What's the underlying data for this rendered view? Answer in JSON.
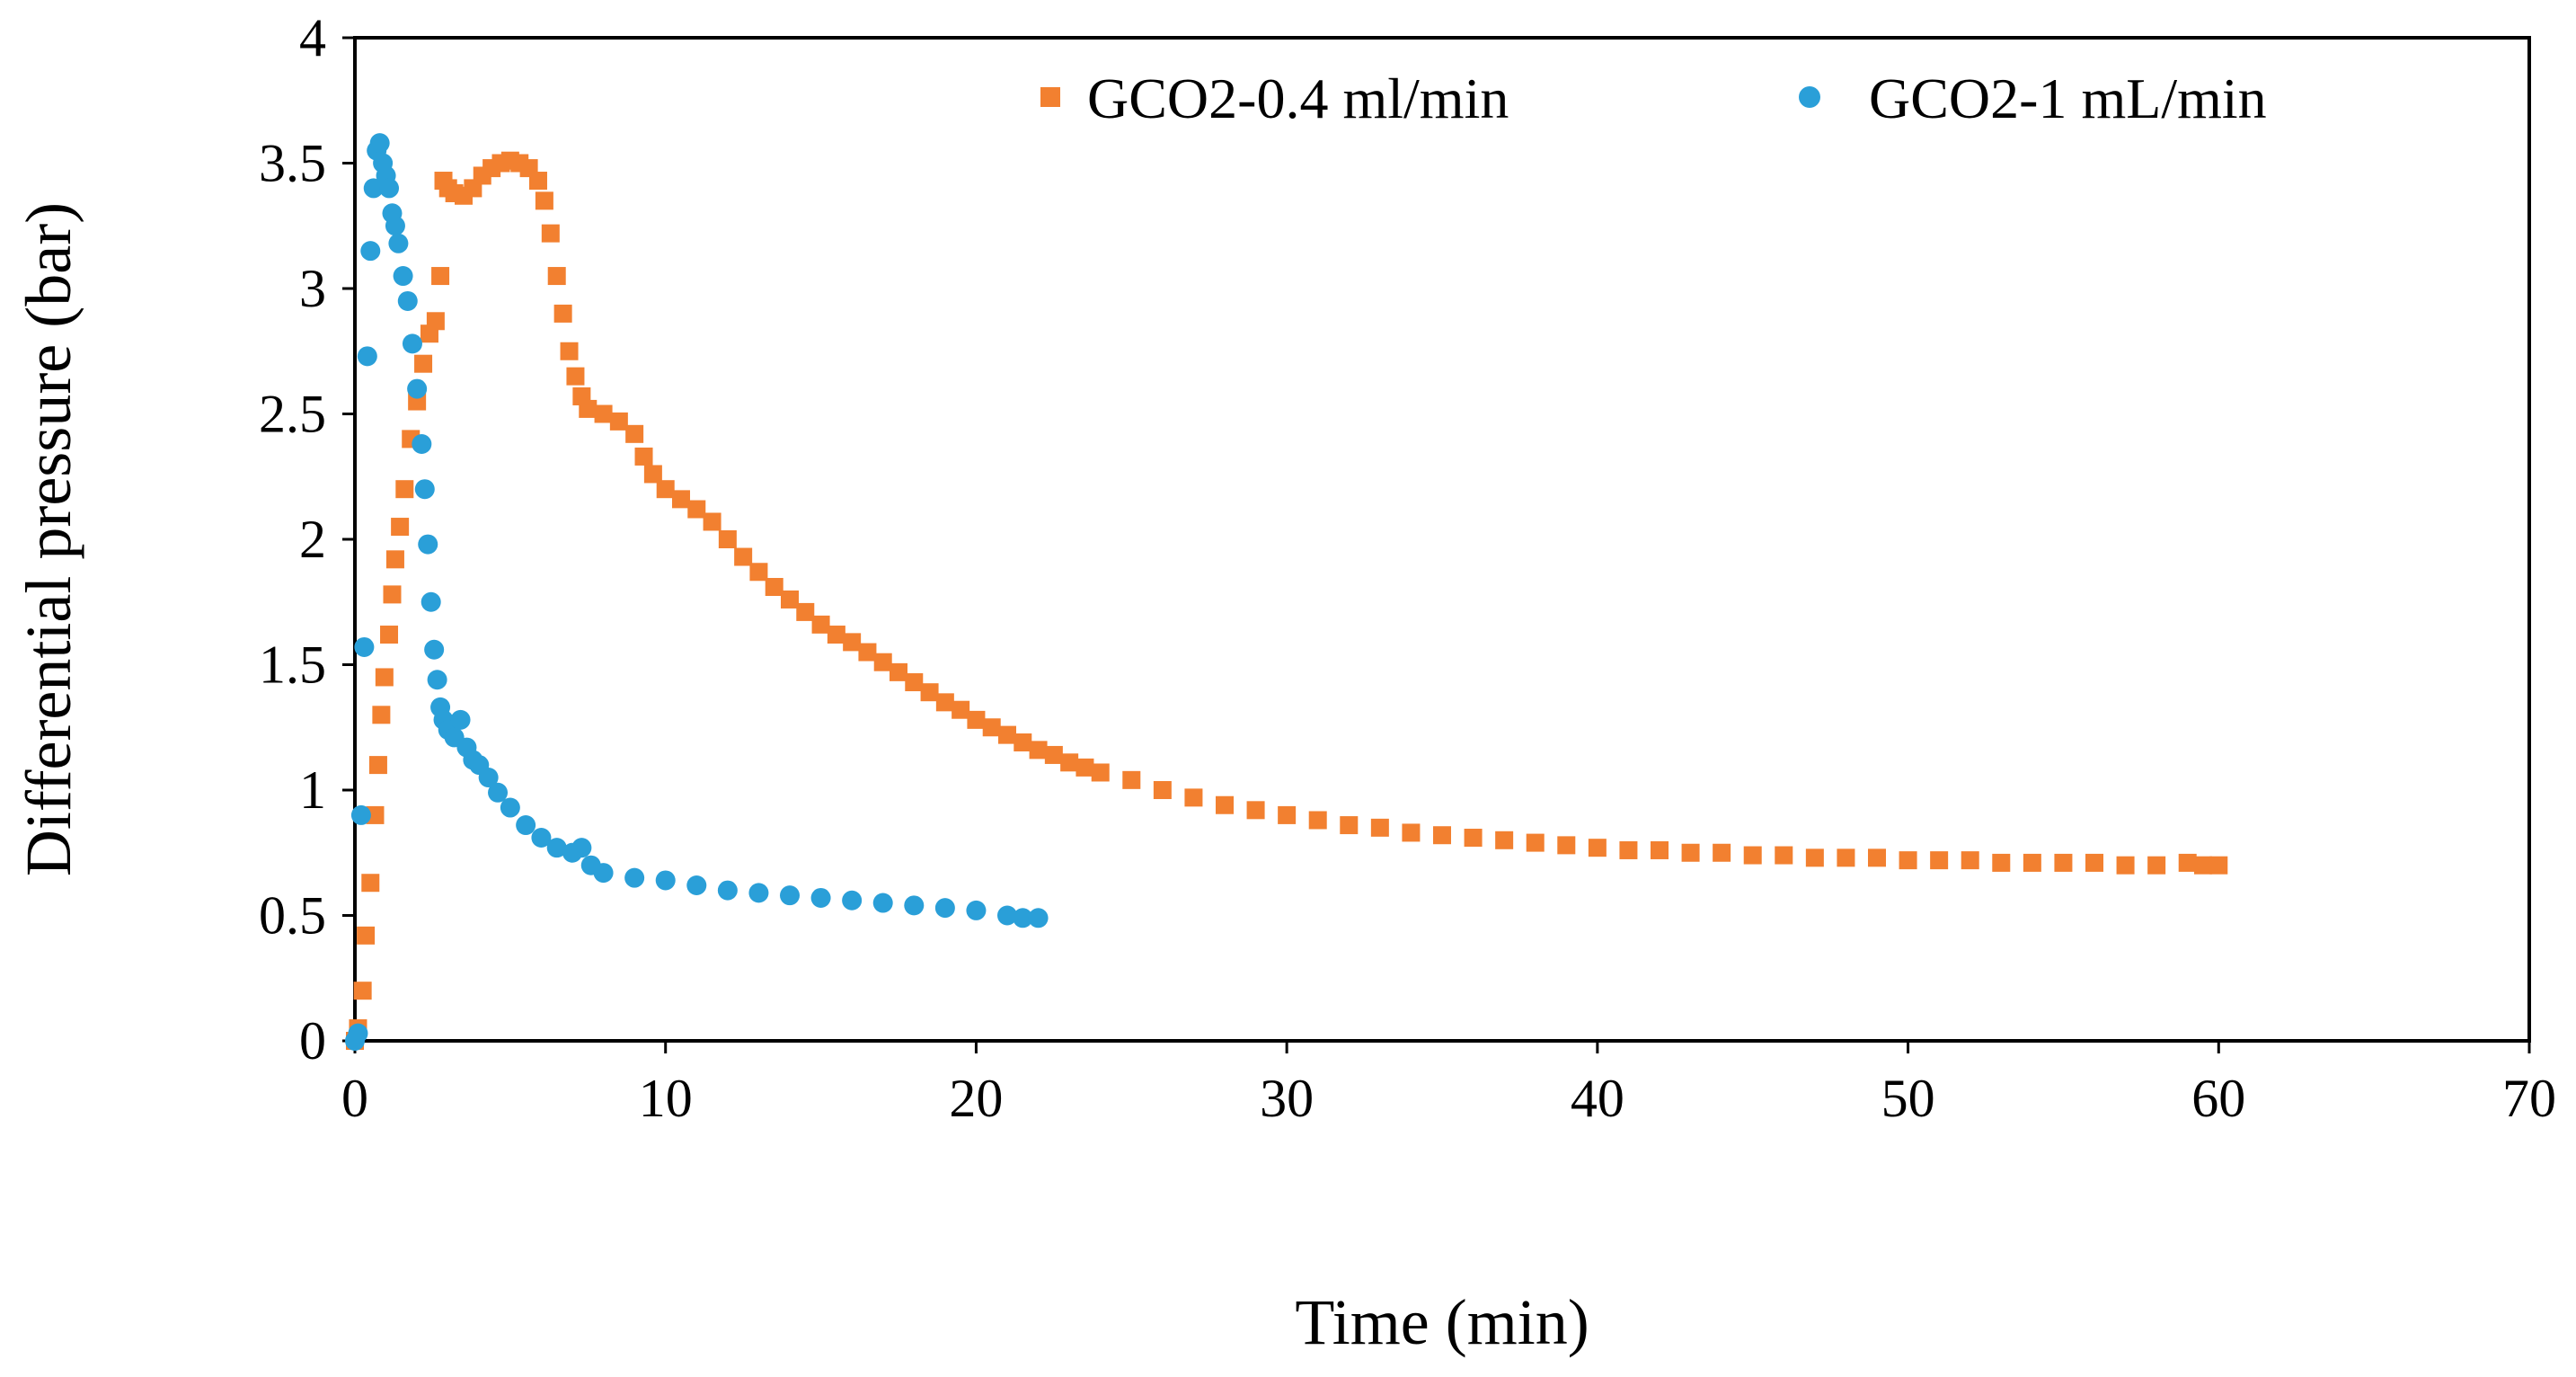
{
  "chart_data": {
    "type": "scatter",
    "title": "",
    "xlabel": "Time (min)",
    "ylabel": "Differential pressure (bar)",
    "xlim": [
      0,
      70
    ],
    "ylim": [
      0,
      4
    ],
    "xticks": [
      0,
      10,
      20,
      30,
      40,
      50,
      60,
      70
    ],
    "yticks": [
      0,
      0.5,
      1,
      1.5,
      2,
      2.5,
      3,
      3.5,
      4
    ],
    "ytick_labels": [
      "0",
      "0.5",
      "1",
      "1.5",
      "2",
      "2.5",
      "3",
      "3.5",
      "4"
    ],
    "grid": false,
    "legend_position": "top-right",
    "series": [
      {
        "name": "GCO2-0.4 ml/min",
        "marker": "square",
        "color": "#F28030",
        "points": [
          [
            0.0,
            0.0
          ],
          [
            0.1,
            0.05
          ],
          [
            0.25,
            0.2
          ],
          [
            0.35,
            0.42
          ],
          [
            0.5,
            0.63
          ],
          [
            0.65,
            0.9
          ],
          [
            0.75,
            1.1
          ],
          [
            0.85,
            1.3
          ],
          [
            0.95,
            1.45
          ],
          [
            1.1,
            1.62
          ],
          [
            1.2,
            1.78
          ],
          [
            1.3,
            1.92
          ],
          [
            1.45,
            2.05
          ],
          [
            1.6,
            2.2
          ],
          [
            1.8,
            2.4
          ],
          [
            2.0,
            2.55
          ],
          [
            2.2,
            2.7
          ],
          [
            2.4,
            2.82
          ],
          [
            2.6,
            2.87
          ],
          [
            2.75,
            3.05
          ],
          [
            2.85,
            3.43
          ],
          [
            3.0,
            3.4
          ],
          [
            3.2,
            3.38
          ],
          [
            3.5,
            3.37
          ],
          [
            3.8,
            3.4
          ],
          [
            4.1,
            3.45
          ],
          [
            4.4,
            3.48
          ],
          [
            4.7,
            3.5
          ],
          [
            5.0,
            3.51
          ],
          [
            5.3,
            3.5
          ],
          [
            5.6,
            3.48
          ],
          [
            5.9,
            3.43
          ],
          [
            6.1,
            3.35
          ],
          [
            6.3,
            3.22
          ],
          [
            6.5,
            3.05
          ],
          [
            6.7,
            2.9
          ],
          [
            6.9,
            2.75
          ],
          [
            7.1,
            2.65
          ],
          [
            7.3,
            2.57
          ],
          [
            7.5,
            2.52
          ],
          [
            8.0,
            2.5
          ],
          [
            8.5,
            2.47
          ],
          [
            9.0,
            2.42
          ],
          [
            9.3,
            2.33
          ],
          [
            9.6,
            2.26
          ],
          [
            10.0,
            2.2
          ],
          [
            10.5,
            2.16
          ],
          [
            11.0,
            2.12
          ],
          [
            11.5,
            2.07
          ],
          [
            12.0,
            2.0
          ],
          [
            12.5,
            1.93
          ],
          [
            13.0,
            1.87
          ],
          [
            13.5,
            1.81
          ],
          [
            14.0,
            1.76
          ],
          [
            14.5,
            1.71
          ],
          [
            15.0,
            1.66
          ],
          [
            15.5,
            1.62
          ],
          [
            16.0,
            1.59
          ],
          [
            16.5,
            1.55
          ],
          [
            17.0,
            1.51
          ],
          [
            17.5,
            1.47
          ],
          [
            18.0,
            1.43
          ],
          [
            18.5,
            1.39
          ],
          [
            19.0,
            1.35
          ],
          [
            19.5,
            1.32
          ],
          [
            20.0,
            1.28
          ],
          [
            20.5,
            1.25
          ],
          [
            21.0,
            1.22
          ],
          [
            21.5,
            1.19
          ],
          [
            22.0,
            1.16
          ],
          [
            22.5,
            1.14
          ],
          [
            23.0,
            1.11
          ],
          [
            23.5,
            1.09
          ],
          [
            24.0,
            1.07
          ],
          [
            25.0,
            1.04
          ],
          [
            26.0,
            1.0
          ],
          [
            27.0,
            0.97
          ],
          [
            28.0,
            0.94
          ],
          [
            29.0,
            0.92
          ],
          [
            30.0,
            0.9
          ],
          [
            31.0,
            0.88
          ],
          [
            32.0,
            0.86
          ],
          [
            33.0,
            0.85
          ],
          [
            34.0,
            0.83
          ],
          [
            35.0,
            0.82
          ],
          [
            36.0,
            0.81
          ],
          [
            37.0,
            0.8
          ],
          [
            38.0,
            0.79
          ],
          [
            39.0,
            0.78
          ],
          [
            40.0,
            0.77
          ],
          [
            41.0,
            0.76
          ],
          [
            42.0,
            0.76
          ],
          [
            43.0,
            0.75
          ],
          [
            44.0,
            0.75
          ],
          [
            45.0,
            0.74
          ],
          [
            46.0,
            0.74
          ],
          [
            47.0,
            0.73
          ],
          [
            48.0,
            0.73
          ],
          [
            49.0,
            0.73
          ],
          [
            50.0,
            0.72
          ],
          [
            51.0,
            0.72
          ],
          [
            52.0,
            0.72
          ],
          [
            53.0,
            0.71
          ],
          [
            54.0,
            0.71
          ],
          [
            55.0,
            0.71
          ],
          [
            56.0,
            0.71
          ],
          [
            57.0,
            0.7
          ],
          [
            58.0,
            0.7
          ],
          [
            59.0,
            0.71
          ],
          [
            59.5,
            0.7
          ],
          [
            60.0,
            0.7
          ]
        ]
      },
      {
        "name": "GCO2-1 mL/min",
        "marker": "circle",
        "color": "#2A9FD8",
        "points": [
          [
            0.0,
            0.0
          ],
          [
            0.1,
            0.03
          ],
          [
            0.2,
            0.9
          ],
          [
            0.3,
            1.57
          ],
          [
            0.4,
            2.73
          ],
          [
            0.5,
            3.15
          ],
          [
            0.6,
            3.4
          ],
          [
            0.7,
            3.55
          ],
          [
            0.8,
            3.58
          ],
          [
            0.9,
            3.5
          ],
          [
            1.0,
            3.45
          ],
          [
            1.1,
            3.4
          ],
          [
            1.2,
            3.3
          ],
          [
            1.3,
            3.25
          ],
          [
            1.4,
            3.18
          ],
          [
            1.55,
            3.05
          ],
          [
            1.7,
            2.95
          ],
          [
            1.85,
            2.78
          ],
          [
            2.0,
            2.6
          ],
          [
            2.15,
            2.38
          ],
          [
            2.25,
            2.2
          ],
          [
            2.35,
            1.98
          ],
          [
            2.45,
            1.75
          ],
          [
            2.55,
            1.56
          ],
          [
            2.65,
            1.44
          ],
          [
            2.75,
            1.33
          ],
          [
            2.85,
            1.28
          ],
          [
            3.0,
            1.24
          ],
          [
            3.2,
            1.21
          ],
          [
            3.4,
            1.28
          ],
          [
            3.6,
            1.17
          ],
          [
            3.8,
            1.12
          ],
          [
            4.0,
            1.1
          ],
          [
            4.3,
            1.05
          ],
          [
            4.6,
            0.99
          ],
          [
            5.0,
            0.93
          ],
          [
            5.5,
            0.86
          ],
          [
            6.0,
            0.81
          ],
          [
            6.5,
            0.77
          ],
          [
            7.0,
            0.75
          ],
          [
            7.3,
            0.77
          ],
          [
            7.6,
            0.7
          ],
          [
            8.0,
            0.67
          ],
          [
            9.0,
            0.65
          ],
          [
            10.0,
            0.64
          ],
          [
            11.0,
            0.62
          ],
          [
            12.0,
            0.6
          ],
          [
            13.0,
            0.59
          ],
          [
            14.0,
            0.58
          ],
          [
            15.0,
            0.57
          ],
          [
            16.0,
            0.56
          ],
          [
            17.0,
            0.55
          ],
          [
            18.0,
            0.54
          ],
          [
            19.0,
            0.53
          ],
          [
            20.0,
            0.52
          ],
          [
            21.0,
            0.5
          ],
          [
            21.5,
            0.49
          ],
          [
            22.0,
            0.49
          ]
        ]
      }
    ]
  }
}
